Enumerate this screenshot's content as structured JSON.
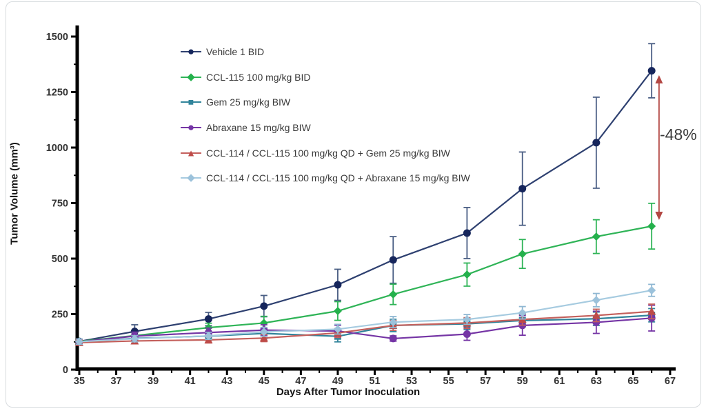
{
  "frame": {
    "background": "#FFFFFF",
    "border_color": "#D7DBDE"
  },
  "chart_data": {
    "type": "line",
    "title": "",
    "xlabel": "Days After Tumor Inoculation",
    "ylabel": "Tumor Volume (mm³)",
    "xlim": [
      35,
      67.3
    ],
    "ylim": [
      0,
      1550
    ],
    "x_ticks": [
      35,
      37,
      39,
      41,
      43,
      45,
      47,
      49,
      51,
      53,
      55,
      57,
      59,
      61,
      63,
      65,
      67
    ],
    "x_minor_step": 1,
    "y_ticks": [
      0,
      250,
      500,
      750,
      1000,
      1250,
      1500
    ],
    "y_minor_step": 125,
    "grid": false,
    "legend_position": "inside-top-left",
    "x_days": [
      35,
      38,
      42,
      45,
      49,
      52,
      56,
      59,
      63,
      66
    ],
    "series": [
      {
        "name": "Vehicle 1 BID",
        "marker": "circle",
        "color": "#16265C",
        "line_color": "#2E4070",
        "error_color": "#4A5E84",
        "values": [
          127,
          172,
          228,
          286,
          382,
          494,
          615,
          815,
          1022,
          1346
        ],
        "errors": [
          10,
          30,
          30,
          48,
          70,
          105,
          115,
          165,
          205,
          122
        ]
      },
      {
        "name": "CCL-115 100 mg/kg BID",
        "marker": "diamond",
        "color": "#24B14C",
        "line_color": "#2FB457",
        "error_color": "#2FB457",
        "values": [
          127,
          153,
          189,
          210,
          264,
          339,
          428,
          521,
          599,
          646
        ],
        "errors": [
          10,
          15,
          20,
          30,
          42,
          46,
          52,
          65,
          76,
          103
        ]
      },
      {
        "name": "Gem 25 mg/kg BIW",
        "marker": "square",
        "color": "#31849B",
        "line_color": "#31849B",
        "error_color": "#31849B",
        "values": [
          124,
          141,
          151,
          163,
          150,
          199,
          206,
          221,
          229,
          245
        ],
        "errors": [
          12,
          15,
          18,
          24,
          25,
          28,
          26,
          28,
          30,
          30
        ]
      },
      {
        "name": "Abraxane 15 mg/kg BIW",
        "marker": "circle",
        "color": "#7535A5",
        "line_color": "#7535A5",
        "error_color": "#7535A5",
        "values": [
          125,
          151,
          167,
          178,
          174,
          140,
          160,
          199,
          213,
          232
        ],
        "errors": [
          12,
          18,
          20,
          24,
          26,
          12,
          28,
          44,
          50,
          58
        ]
      },
      {
        "name": "CCL-114 / CCL-115 100 mg/kg QD + Gem 25 mg/kg BIW",
        "marker": "triangle",
        "color": "#BE4B48",
        "line_color": "#C4605C",
        "error_color": "#C4605C",
        "values": [
          122,
          129,
          134,
          142,
          165,
          199,
          210,
          226,
          244,
          262
        ],
        "errors": [
          10,
          12,
          14,
          16,
          20,
          22,
          24,
          26,
          28,
          33
        ]
      },
      {
        "name": "CCL-114 / CCL-115 100 mg/kg QD + Abraxane 15 mg/kg BIW",
        "marker": "diamond",
        "color": "#9CC2DB",
        "line_color": "#A6CBE0",
        "error_color": "#8FB7D2",
        "values": [
          126,
          139,
          152,
          170,
          182,
          214,
          226,
          256,
          313,
          357
        ],
        "errors": [
          12,
          14,
          16,
          20,
          22,
          25,
          22,
          28,
          30,
          27
        ]
      }
    ],
    "annotation": {
      "label": "-48%",
      "color": "#B34743",
      "text_color": "#3B3B3B",
      "x_day": 66.4,
      "value_top": 1320,
      "value_bottom": 680
    }
  }
}
